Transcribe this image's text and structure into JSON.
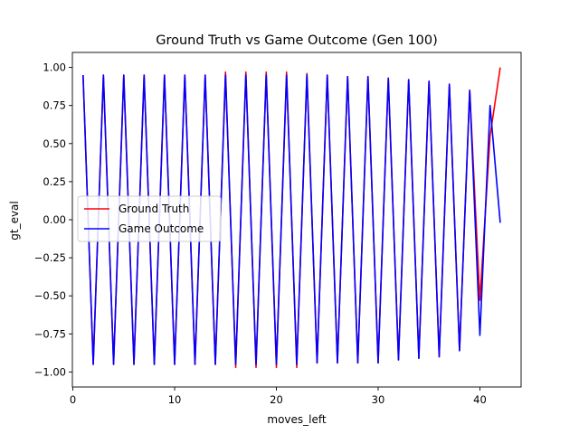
{
  "chart_data": {
    "type": "line",
    "title": "Ground Truth vs Game Outcome (Gen 100)",
    "xlabel": "moves_left",
    "ylabel": "gt_eval",
    "xlim": [
      -0.05,
      44.05
    ],
    "ylim": [
      -1.0985,
      1.0985
    ],
    "xticks": [
      0,
      10,
      20,
      30,
      40
    ],
    "xtick_labels": [
      "0",
      "10",
      "20",
      "30",
      "40"
    ],
    "yticks": [
      -1.0,
      -0.75,
      -0.5,
      -0.25,
      0.0,
      0.25,
      0.5,
      0.75,
      1.0
    ],
    "ytick_labels": [
      "−1.00",
      "−0.75",
      "−0.50",
      "−0.25",
      "0.00",
      "0.25",
      "0.50",
      "0.75",
      "1.00"
    ],
    "legend": "center-left",
    "grid": false,
    "x": [
      1,
      2,
      3,
      4,
      5,
      6,
      7,
      8,
      9,
      10,
      11,
      12,
      13,
      14,
      15,
      16,
      17,
      18,
      19,
      20,
      21,
      22,
      23,
      24,
      25,
      26,
      27,
      28,
      29,
      30,
      31,
      32,
      33,
      34,
      35,
      36,
      37,
      38,
      39,
      40,
      41,
      42
    ],
    "series": [
      {
        "name": "Ground Truth",
        "color": "#ff0000",
        "values": [
          0.95,
          -0.95,
          0.95,
          -0.95,
          0.95,
          -0.95,
          0.95,
          -0.95,
          0.95,
          -0.95,
          0.95,
          -0.95,
          0.95,
          -0.95,
          0.97,
          -0.97,
          0.97,
          -0.97,
          0.97,
          -0.97,
          0.97,
          -0.97,
          0.96,
          -0.94,
          0.95,
          -0.94,
          0.94,
          -0.94,
          0.94,
          -0.94,
          0.93,
          -0.92,
          0.92,
          -0.91,
          0.91,
          -0.9,
          0.89,
          -0.86,
          0.85,
          -0.53,
          0.55,
          1.0
        ]
      },
      {
        "name": "Game Outcome",
        "color": "#0000ff",
        "values": [
          0.95,
          -0.95,
          0.95,
          -0.95,
          0.95,
          -0.95,
          0.95,
          -0.95,
          0.95,
          -0.95,
          0.95,
          -0.95,
          0.95,
          -0.95,
          0.95,
          -0.95,
          0.95,
          -0.95,
          0.95,
          -0.95,
          0.95,
          -0.95,
          0.95,
          -0.94,
          0.95,
          -0.94,
          0.94,
          -0.94,
          0.94,
          -0.94,
          0.93,
          -0.92,
          0.92,
          -0.91,
          0.91,
          -0.9,
          0.89,
          -0.86,
          0.85,
          -0.76,
          0.75,
          -0.02
        ]
      }
    ]
  }
}
